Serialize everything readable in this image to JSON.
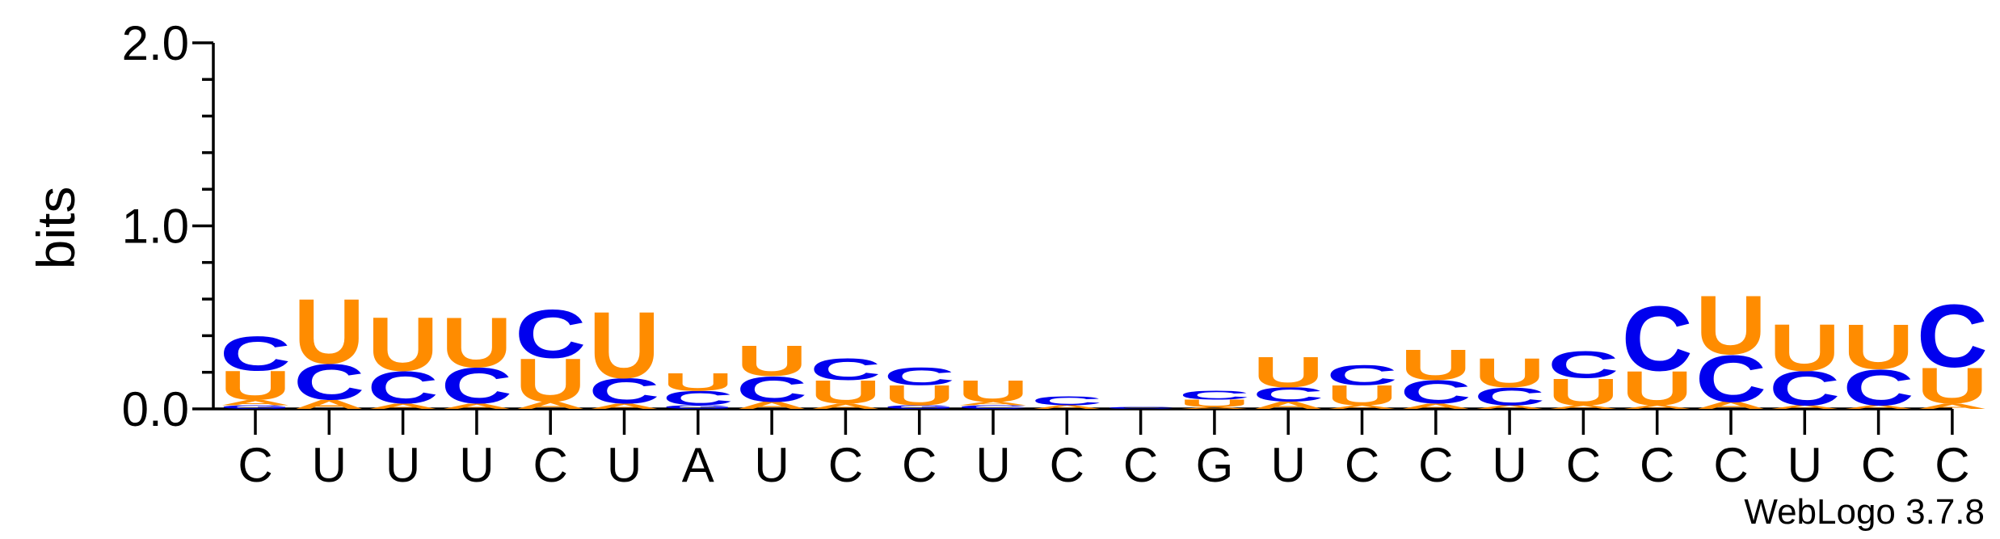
{
  "chart_data": {
    "type": "logo",
    "ylabel": "bits",
    "credit": "WebLogo 3.7.8",
    "ylim": [
      0,
      2
    ],
    "yticks": [
      {
        "value": 0,
        "label": "0.0"
      },
      {
        "value": 1,
        "label": "1.0"
      },
      {
        "value": 2,
        "label": "2.0"
      }
    ],
    "yticks_minor": [
      0.2,
      0.4,
      0.6,
      0.8,
      1.2,
      1.4,
      1.6,
      1.8
    ],
    "colors": {
      "A": "#ff8c00",
      "C": "#0000ee",
      "G": "#0000ee",
      "U": "#ff8c00"
    },
    "categories": [
      "C",
      "U",
      "U",
      "U",
      "C",
      "U",
      "A",
      "U",
      "C",
      "C",
      "U",
      "C",
      "C",
      "G",
      "U",
      "C",
      "C",
      "U",
      "C",
      "C",
      "C",
      "U",
      "C",
      "C"
    ],
    "stacks": [
      [
        {
          "letter": "G",
          "value": 0.02
        },
        {
          "letter": "A",
          "value": 0.03
        },
        {
          "letter": "U",
          "value": 0.16
        },
        {
          "letter": "C",
          "value": 0.19
        }
      ],
      [
        {
          "letter": "A",
          "value": 0.05
        },
        {
          "letter": "C",
          "value": 0.2
        },
        {
          "letter": "U",
          "value": 0.36
        }
      ],
      [
        {
          "letter": "A",
          "value": 0.03
        },
        {
          "letter": "C",
          "value": 0.18
        },
        {
          "letter": "U",
          "value": 0.3
        }
      ],
      [
        {
          "letter": "A",
          "value": 0.03
        },
        {
          "letter": "C",
          "value": 0.2
        },
        {
          "letter": "U",
          "value": 0.28
        }
      ],
      [
        {
          "letter": "A",
          "value": 0.04
        },
        {
          "letter": "U",
          "value": 0.24
        },
        {
          "letter": "C",
          "value": 0.27
        }
      ],
      [
        {
          "letter": "A",
          "value": 0.03
        },
        {
          "letter": "C",
          "value": 0.14
        },
        {
          "letter": "U",
          "value": 0.37
        }
      ],
      [
        {
          "letter": "G",
          "value": 0.02
        },
        {
          "letter": "C",
          "value": 0.08
        },
        {
          "letter": "U",
          "value": 0.1
        }
      ],
      [
        {
          "letter": "A",
          "value": 0.04
        },
        {
          "letter": "C",
          "value": 0.14
        },
        {
          "letter": "U",
          "value": 0.17
        }
      ],
      [
        {
          "letter": "A",
          "value": 0.03
        },
        {
          "letter": "U",
          "value": 0.13
        },
        {
          "letter": "C",
          "value": 0.12
        }
      ],
      [
        {
          "letter": "G",
          "value": 0.02
        },
        {
          "letter": "U",
          "value": 0.11
        },
        {
          "letter": "C",
          "value": 0.1
        }
      ],
      [
        {
          "letter": "C",
          "value": 0.02
        },
        {
          "letter": "A",
          "value": 0.02
        },
        {
          "letter": "U",
          "value": 0.12
        }
      ],
      [
        {
          "letter": "A",
          "value": 0.02
        },
        {
          "letter": "C",
          "value": 0.05
        }
      ],
      [
        {
          "letter": "C",
          "value": 0.01
        }
      ],
      [
        {
          "letter": "A",
          "value": 0.01
        },
        {
          "letter": "U",
          "value": 0.04
        },
        {
          "letter": "C",
          "value": 0.05
        }
      ],
      [
        {
          "letter": "A",
          "value": 0.04
        },
        {
          "letter": "C",
          "value": 0.08
        },
        {
          "letter": "U",
          "value": 0.17
        }
      ],
      [
        {
          "letter": "A",
          "value": 0.02
        },
        {
          "letter": "U",
          "value": 0.11
        },
        {
          "letter": "C",
          "value": 0.11
        }
      ],
      [
        {
          "letter": "A",
          "value": 0.03
        },
        {
          "letter": "C",
          "value": 0.13
        },
        {
          "letter": "U",
          "value": 0.17
        }
      ],
      [
        {
          "letter": "A",
          "value": 0.02
        },
        {
          "letter": "C",
          "value": 0.1
        },
        {
          "letter": "U",
          "value": 0.16
        }
      ],
      [
        {
          "letter": "A",
          "value": 0.02
        },
        {
          "letter": "U",
          "value": 0.15
        },
        {
          "letter": "C",
          "value": 0.15
        }
      ],
      [
        {
          "letter": "A",
          "value": 0.02
        },
        {
          "letter": "U",
          "value": 0.19
        },
        {
          "letter": "C",
          "value": 0.36
        }
      ],
      [
        {
          "letter": "A",
          "value": 0.04
        },
        {
          "letter": "C",
          "value": 0.26
        },
        {
          "letter": "U",
          "value": 0.33
        }
      ],
      [
        {
          "letter": "A",
          "value": 0.02
        },
        {
          "letter": "C",
          "value": 0.19
        },
        {
          "letter": "U",
          "value": 0.26
        }
      ],
      [
        {
          "letter": "A",
          "value": 0.02
        },
        {
          "letter": "C",
          "value": 0.2
        },
        {
          "letter": "U",
          "value": 0.25
        }
      ],
      [
        {
          "letter": "A",
          "value": 0.03
        },
        {
          "letter": "U",
          "value": 0.2
        },
        {
          "letter": "C",
          "value": 0.35
        }
      ]
    ]
  }
}
